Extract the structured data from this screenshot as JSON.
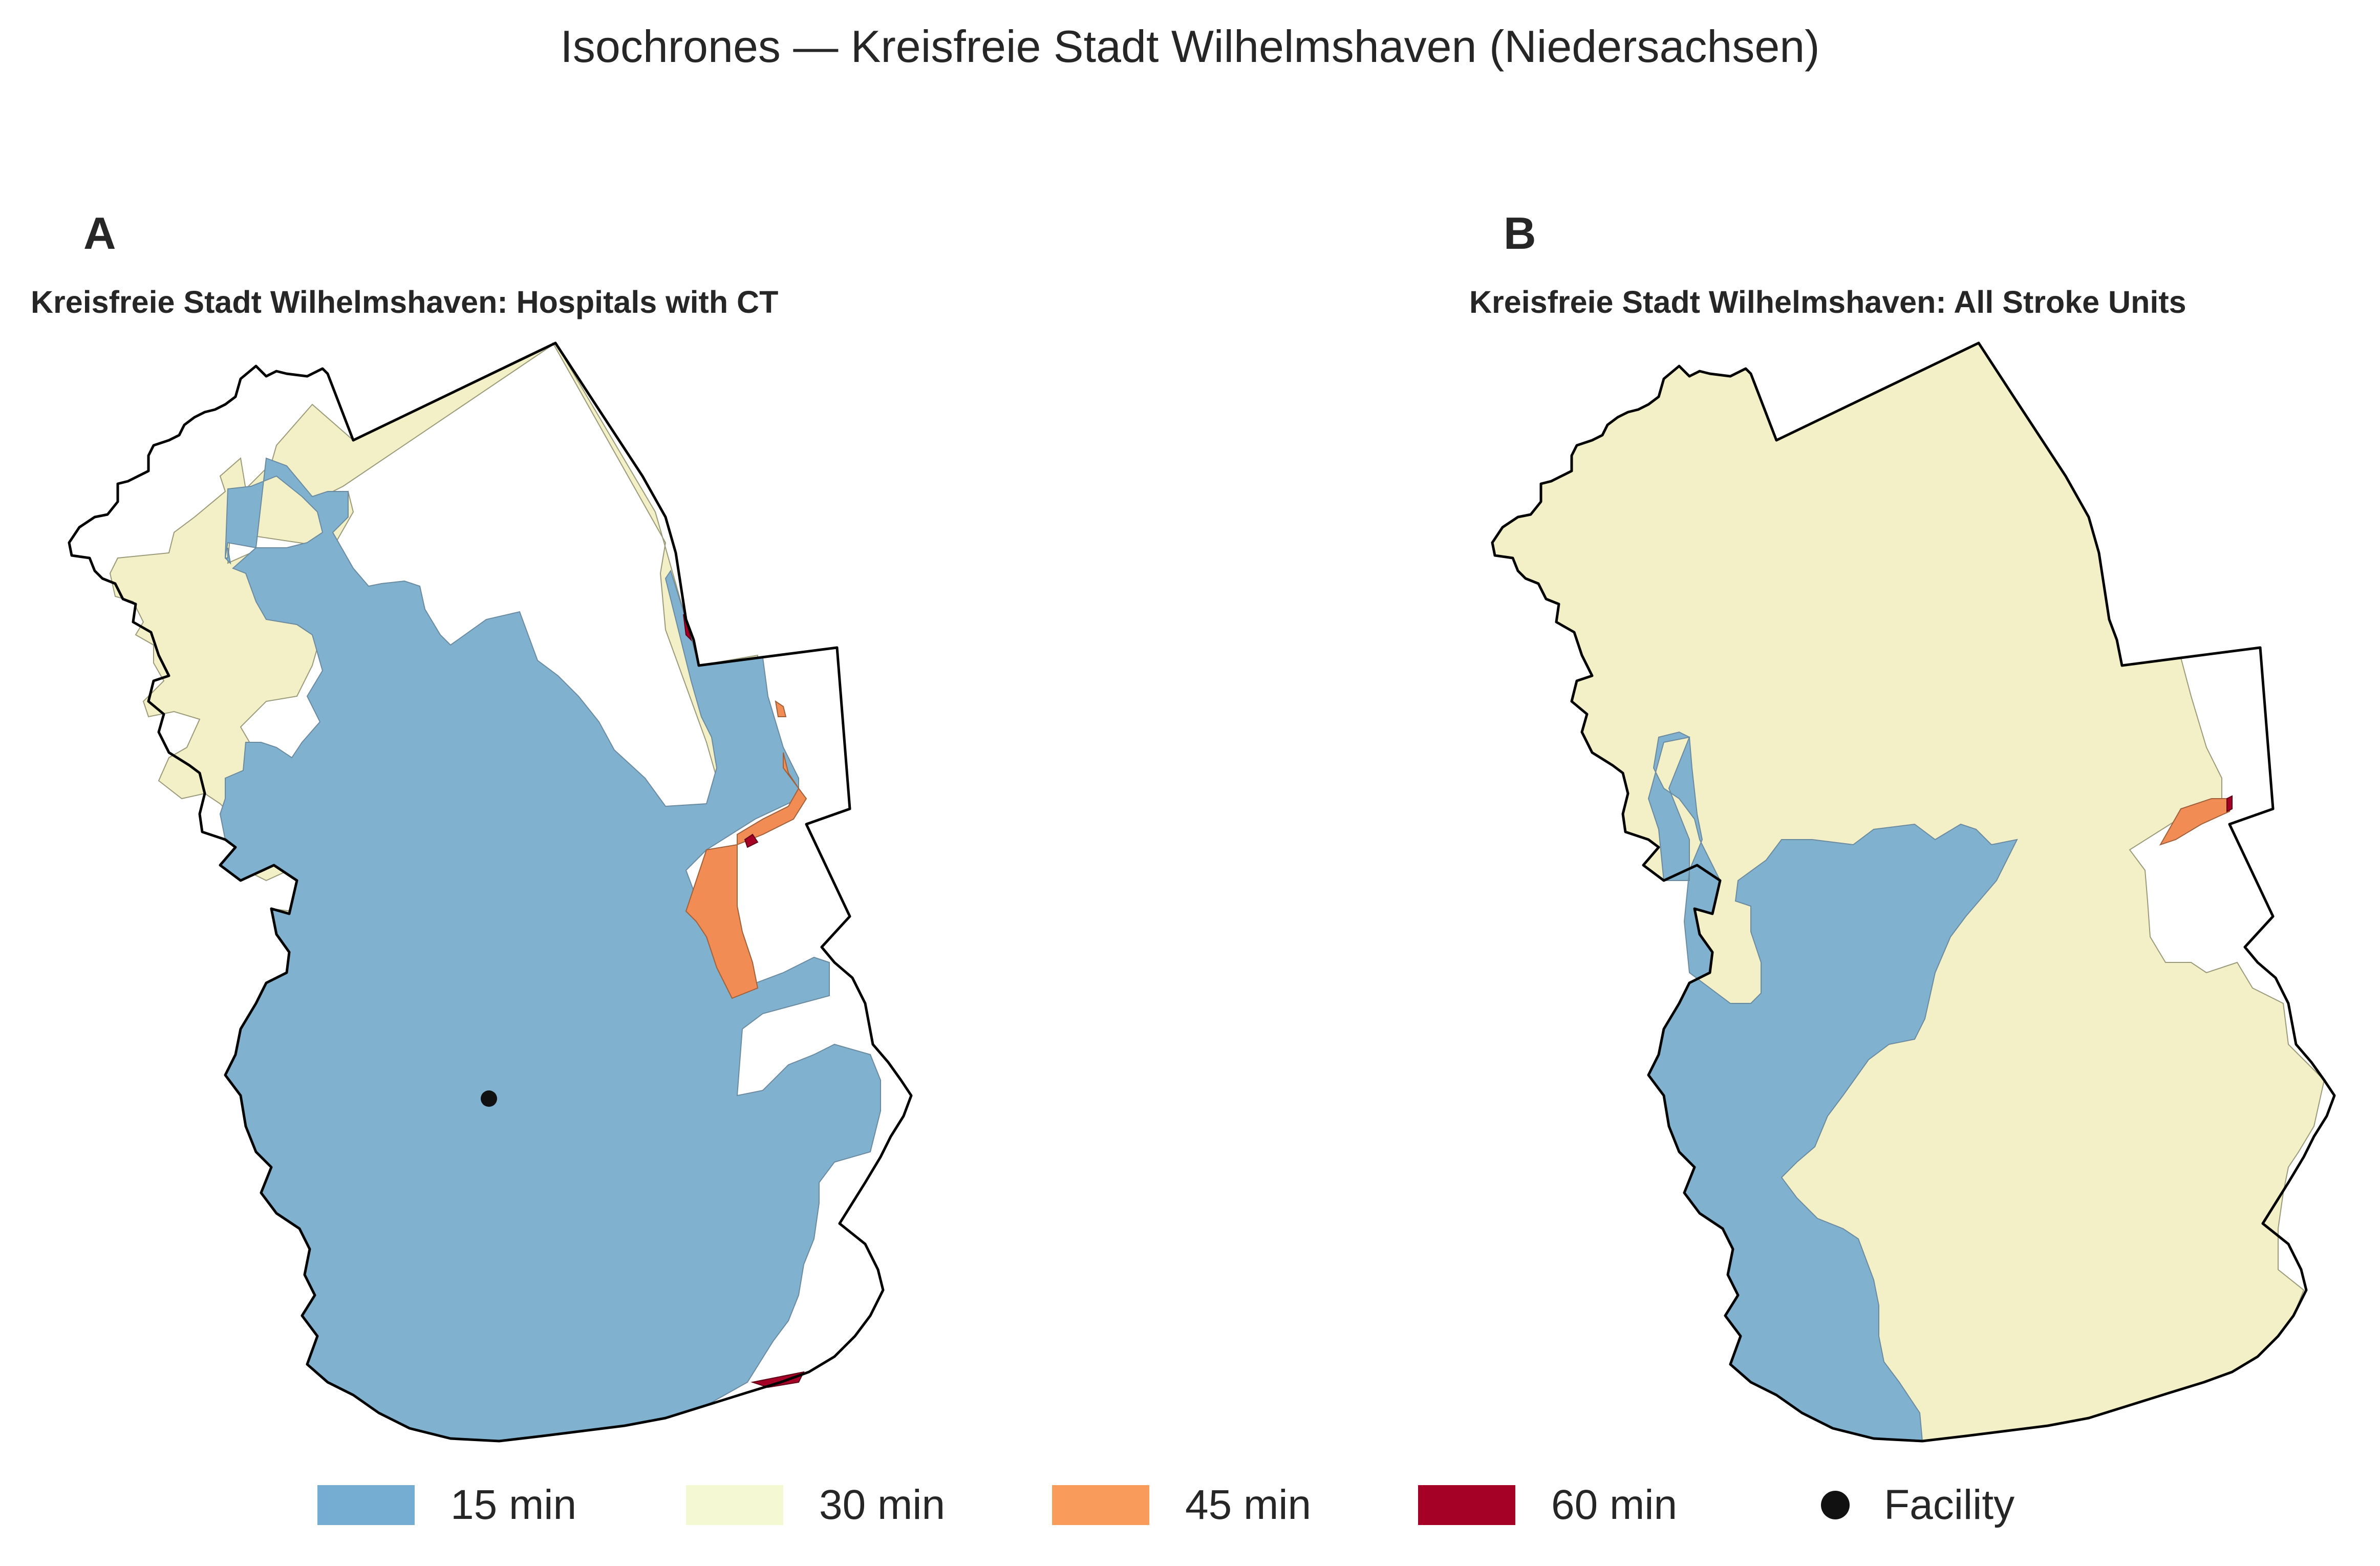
{
  "title": "Isochrones — Kreisfreie Stadt Wilhelmshaven (Niedersachsen)",
  "panels": [
    {
      "letter": "A",
      "subtitle": "Kreisfreie Stadt Wilhelmshaven: Hospitals with CT"
    },
    {
      "letter": "B",
      "subtitle": "Kreisfreie Stadt Wilhelmshaven: All Stroke Units"
    }
  ],
  "legend": [
    {
      "label": "15 min",
      "color": "#74add1"
    },
    {
      "label": "30 min",
      "color": "#f4f9d4"
    },
    {
      "label": "45 min",
      "color": "#f89b5b"
    },
    {
      "label": "60 min",
      "color": "#a50026"
    },
    {
      "label": "Facility",
      "color": "#111111"
    }
  ],
  "fill_colors": {
    "15 min": "#80b2d0",
    "30 min": "#f3efc6",
    "45 min": "#f18c55",
    "60 min": "#a50026"
  }
}
